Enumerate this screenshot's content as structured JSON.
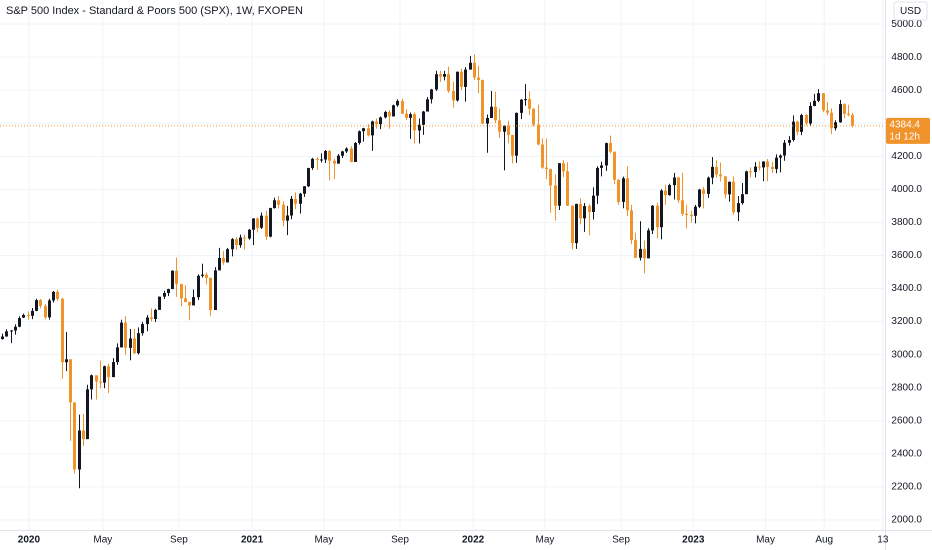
{
  "chart_data": {
    "type": "candlestick",
    "title": "S&P 500 Index - Standard & Poors 500 (SPX), 1W, FXOPEN",
    "currency": "USD",
    "countdown": "1d 12h",
    "last_price": 4384.4,
    "up_color": "#131722",
    "down_color": "#f0932b",
    "grid": true,
    "xlim": [
      -0.5,
      207.7
    ],
    "ylim": [
      1939,
      5146
    ],
    "xticks": [
      {
        "value": 6.3,
        "label": "2020"
      },
      {
        "value": 23.7,
        "label": "May"
      },
      {
        "value": 41.6,
        "label": "Sep"
      },
      {
        "value": 58.8,
        "label": "2021"
      },
      {
        "value": 75.7,
        "label": "May"
      },
      {
        "value": 93.6,
        "label": "Sep"
      },
      {
        "value": 110.8,
        "label": "2022"
      },
      {
        "value": 127.7,
        "label": "May"
      },
      {
        "value": 145.6,
        "label": "Sep"
      },
      {
        "value": 162.6,
        "label": "2023"
      },
      {
        "value": 179.6,
        "label": "May"
      },
      {
        "value": 193.4,
        "label": "Aug"
      },
      {
        "value": 207.2,
        "label": "13"
      }
    ],
    "yticks": [
      {
        "value": 2000,
        "label": "2000.0"
      },
      {
        "value": 2200,
        "label": "2200.0"
      },
      {
        "value": 2400,
        "label": "2400.0"
      },
      {
        "value": 2600,
        "label": "2600.0"
      },
      {
        "value": 2800,
        "label": "2800.0"
      },
      {
        "value": 3000,
        "label": "3000.0"
      },
      {
        "value": 3200,
        "label": "3200.0"
      },
      {
        "value": 3400,
        "label": "3400.0"
      },
      {
        "value": 3600,
        "label": "3600.0"
      },
      {
        "value": 3800,
        "label": "3800.0"
      },
      {
        "value": 4000,
        "label": "4000.0"
      },
      {
        "value": 4200,
        "label": "4200.0"
      },
      {
        "value": 4400,
        "label": "4400.0"
      },
      {
        "value": 4600,
        "label": "4600.0"
      },
      {
        "value": 4800,
        "label": "4800.0"
      },
      {
        "value": 5000,
        "label": "5000.0"
      }
    ],
    "ohlc": [
      [
        3094,
        3127,
        3091,
        3110
      ],
      [
        3110,
        3154,
        3108,
        3141
      ],
      [
        3143,
        3150,
        3070,
        3146
      ],
      [
        3146,
        3183,
        3121,
        3169
      ],
      [
        3169,
        3232,
        3166,
        3221
      ],
      [
        3224,
        3248,
        3221,
        3240
      ],
      [
        3240,
        3260,
        3212,
        3235
      ],
      [
        3235,
        3282,
        3215,
        3265
      ],
      [
        3265,
        3338,
        3263,
        3330
      ],
      [
        3330,
        3337,
        3280,
        3295
      ],
      [
        3295,
        3306,
        3214,
        3226
      ],
      [
        3226,
        3338,
        3212,
        3328
      ],
      [
        3328,
        3385,
        3315,
        3380
      ],
      [
        3380,
        3393,
        3327,
        3338
      ],
      [
        3338,
        3345,
        2855,
        2954
      ],
      [
        2954,
        3137,
        2900,
        2972
      ],
      [
        2972,
        2972,
        2478,
        2711
      ],
      [
        2711,
        2711,
        2281,
        2305
      ],
      [
        2305,
        2637,
        2192,
        2541
      ],
      [
        2541,
        2641,
        2447,
        2489
      ],
      [
        2489,
        2818,
        2489,
        2790
      ],
      [
        2790,
        2880,
        2729,
        2875
      ],
      [
        2875,
        2875,
        2728,
        2837
      ],
      [
        2837,
        2965,
        2797,
        2831
      ],
      [
        2831,
        2934,
        2797,
        2930
      ],
      [
        2930,
        2945,
        2767,
        2864
      ],
      [
        2864,
        2980,
        2864,
        2955
      ],
      [
        2955,
        3068,
        2938,
        3044
      ],
      [
        3044,
        3211,
        3044,
        3194
      ],
      [
        3194,
        3233,
        2999,
        3041
      ],
      [
        3041,
        3155,
        2966,
        3098
      ],
      [
        3098,
        3155,
        3004,
        3009
      ],
      [
        3009,
        3165,
        3001,
        3130
      ],
      [
        3130,
        3198,
        3115,
        3185
      ],
      [
        3185,
        3239,
        3142,
        3225
      ],
      [
        3225,
        3280,
        3200,
        3216
      ],
      [
        3216,
        3278,
        3197,
        3271
      ],
      [
        3271,
        3352,
        3271,
        3351
      ],
      [
        3351,
        3387,
        3337,
        3373
      ],
      [
        3373,
        3399,
        3354,
        3397
      ],
      [
        3397,
        3510,
        3397,
        3508
      ],
      [
        3508,
        3588,
        3350,
        3427
      ],
      [
        3427,
        3430,
        3293,
        3341
      ],
      [
        3341,
        3420,
        3316,
        3319
      ],
      [
        3319,
        3320,
        3209,
        3298
      ],
      [
        3298,
        3394,
        3298,
        3348
      ],
      [
        3348,
        3486,
        3330,
        3477
      ],
      [
        3477,
        3550,
        3466,
        3484
      ],
      [
        3484,
        3497,
        3425,
        3465
      ],
      [
        3465,
        3465,
        3233,
        3270
      ],
      [
        3270,
        3530,
        3270,
        3510
      ],
      [
        3510,
        3646,
        3510,
        3585
      ],
      [
        3585,
        3628,
        3543,
        3558
      ],
      [
        3558,
        3645,
        3558,
        3638
      ],
      [
        3638,
        3705,
        3595,
        3699
      ],
      [
        3699,
        3713,
        3633,
        3663
      ],
      [
        3663,
        3726,
        3647,
        3709
      ],
      [
        3709,
        3726,
        3636,
        3703
      ],
      [
        3703,
        3760,
        3695,
        3756
      ],
      [
        3756,
        3826,
        3663,
        3824
      ],
      [
        3824,
        3830,
        3740,
        3768
      ],
      [
        3768,
        3860,
        3760,
        3841
      ],
      [
        3841,
        3870,
        3694,
        3714
      ],
      [
        3714,
        3889,
        3710,
        3887
      ],
      [
        3887,
        3950,
        3884,
        3934
      ],
      [
        3934,
        3960,
        3885,
        3907
      ],
      [
        3907,
        3928,
        3776,
        3811
      ],
      [
        3811,
        3900,
        3723,
        3842
      ],
      [
        3842,
        3960,
        3819,
        3943
      ],
      [
        3943,
        3983,
        3880,
        3913
      ],
      [
        3913,
        3979,
        3853,
        3974
      ],
      [
        3974,
        4020,
        3955,
        4019
      ],
      [
        4019,
        4131,
        4014,
        4129
      ],
      [
        4129,
        4191,
        4118,
        4185
      ],
      [
        4185,
        4195,
        4118,
        4180
      ],
      [
        4180,
        4218,
        4163,
        4181
      ],
      [
        4181,
        4238,
        4160,
        4232
      ],
      [
        4232,
        4238,
        4056,
        4173
      ],
      [
        4173,
        4185,
        4062,
        4156
      ],
      [
        4156,
        4214,
        4156,
        4204
      ],
      [
        4204,
        4234,
        4190,
        4230
      ],
      [
        4230,
        4255,
        4220,
        4247
      ],
      [
        4247,
        4262,
        4164,
        4166
      ],
      [
        4166,
        4286,
        4166,
        4281
      ],
      [
        4281,
        4356,
        4271,
        4352
      ],
      [
        4352,
        4372,
        4289,
        4370
      ],
      [
        4370,
        4394,
        4321,
        4327
      ],
      [
        4327,
        4416,
        4233,
        4411
      ],
      [
        4411,
        4429,
        4368,
        4395
      ],
      [
        4395,
        4440,
        4365,
        4436
      ],
      [
        4436,
        4475,
        4430,
        4468
      ],
      [
        4468,
        4480,
        4367,
        4442
      ],
      [
        4442,
        4513,
        4440,
        4509
      ],
      [
        4509,
        4545,
        4500,
        4535
      ],
      [
        4535,
        4549,
        4456,
        4458
      ],
      [
        4458,
        4486,
        4420,
        4433
      ],
      [
        4433,
        4465,
        4306,
        4455
      ],
      [
        4455,
        4466,
        4278,
        4357
      ],
      [
        4357,
        4429,
        4278,
        4391
      ],
      [
        4391,
        4475,
        4330,
        4471
      ],
      [
        4471,
        4560,
        4471,
        4545
      ],
      [
        4545,
        4608,
        4520,
        4605
      ],
      [
        4605,
        4718,
        4595,
        4697
      ],
      [
        4697,
        4718,
        4650,
        4682
      ],
      [
        4682,
        4717,
        4660,
        4698
      ],
      [
        4698,
        4743,
        4585,
        4595
      ],
      [
        4595,
        4652,
        4495,
        4538
      ],
      [
        4538,
        4713,
        4532,
        4712
      ],
      [
        4712,
        4731,
        4600,
        4620
      ],
      [
        4620,
        4740,
        4531,
        4725
      ],
      [
        4725,
        4808,
        4725,
        4766
      ],
      [
        4766,
        4818,
        4662,
        4677
      ],
      [
        4677,
        4749,
        4582,
        4662
      ],
      [
        4662,
        4665,
        4395,
        4398
      ],
      [
        4398,
        4453,
        4222,
        4432
      ],
      [
        4432,
        4595,
        4432,
        4500
      ],
      [
        4500,
        4590,
        4401,
        4418
      ],
      [
        4418,
        4489,
        4312,
        4349
      ],
      [
        4349,
        4390,
        4115,
        4385
      ],
      [
        4385,
        4416,
        4279,
        4329
      ],
      [
        4329,
        4331,
        4157,
        4204
      ],
      [
        4204,
        4465,
        4161,
        4463
      ],
      [
        4463,
        4546,
        4425,
        4543
      ],
      [
        4543,
        4637,
        4506,
        4546
      ],
      [
        4546,
        4593,
        4450,
        4488
      ],
      [
        4488,
        4492,
        4381,
        4392
      ],
      [
        4392,
        4513,
        4267,
        4272
      ],
      [
        4272,
        4308,
        4124,
        4132
      ],
      [
        4132,
        4308,
        4062,
        4123
      ],
      [
        4123,
        4124,
        3859,
        4024
      ],
      [
        4024,
        4090,
        3811,
        3901
      ],
      [
        3901,
        4160,
        3875,
        4158
      ],
      [
        4158,
        4177,
        4074,
        4109
      ],
      [
        4109,
        4165,
        3900,
        3901
      ],
      [
        3901,
        3903,
        3637,
        3675
      ],
      [
        3675,
        3913,
        3640,
        3912
      ],
      [
        3912,
        3946,
        3788,
        3825
      ],
      [
        3825,
        3918,
        3743,
        3899
      ],
      [
        3899,
        3911,
        3722,
        3863
      ],
      [
        3863,
        4012,
        3818,
        3962
      ],
      [
        3962,
        4140,
        3912,
        4130
      ],
      [
        4130,
        4167,
        4079,
        4145
      ],
      [
        4145,
        4283,
        4112,
        4280
      ],
      [
        4280,
        4325,
        4218,
        4228
      ],
      [
        4228,
        4228,
        4031,
        4058
      ],
      [
        4058,
        4062,
        3906,
        3924
      ],
      [
        3924,
        4077,
        3886,
        4067
      ],
      [
        4067,
        4140,
        3838,
        3873
      ],
      [
        3873,
        3906,
        3669,
        3693
      ],
      [
        3693,
        3737,
        3584,
        3586
      ],
      [
        3586,
        3807,
        3570,
        3640
      ],
      [
        3640,
        3690,
        3492,
        3583
      ],
      [
        3583,
        3765,
        3583,
        3752
      ],
      [
        3752,
        3905,
        3730,
        3901
      ],
      [
        3901,
        3920,
        3704,
        3771
      ],
      [
        3771,
        4001,
        3698,
        3993
      ],
      [
        3993,
        4028,
        3906,
        3965
      ],
      [
        3965,
        4034,
        3962,
        4026
      ],
      [
        4026,
        4100,
        3939,
        4072
      ],
      [
        4072,
        4076,
        3918,
        3934
      ],
      [
        3934,
        4101,
        3838,
        3852
      ],
      [
        3852,
        3906,
        3764,
        3845
      ],
      [
        3845,
        3872,
        3800,
        3840
      ],
      [
        3840,
        3906,
        3794,
        3895
      ],
      [
        3895,
        4003,
        3887,
        3999
      ],
      [
        3999,
        4015,
        3885,
        3973
      ],
      [
        3973,
        4077,
        3949,
        4071
      ],
      [
        4071,
        4195,
        4031,
        4136
      ],
      [
        4136,
        4176,
        4070,
        4090
      ],
      [
        4090,
        4163,
        4048,
        4079
      ],
      [
        4079,
        4080,
        3944,
        3970
      ],
      [
        3970,
        4048,
        3925,
        4046
      ],
      [
        4046,
        4079,
        3847,
        3862
      ],
      [
        3862,
        3960,
        3808,
        3917
      ],
      [
        3917,
        4039,
        3908,
        3971
      ],
      [
        3971,
        4113,
        3971,
        4109
      ],
      [
        4109,
        4133,
        4073,
        4105
      ],
      [
        4105,
        4164,
        4072,
        4138
      ],
      [
        4138,
        4170,
        4114,
        4133
      ],
      [
        4133,
        4170,
        4049,
        4169
      ],
      [
        4169,
        4185,
        4049,
        4136
      ],
      [
        4136,
        4166,
        4099,
        4124
      ],
      [
        4124,
        4212,
        4098,
        4192
      ],
      [
        4192,
        4212,
        4103,
        4205
      ],
      [
        4205,
        4299,
        4173,
        4282
      ],
      [
        4282,
        4322,
        4265,
        4299
      ],
      [
        4299,
        4448,
        4290,
        4410
      ],
      [
        4410,
        4415,
        4328,
        4348
      ],
      [
        4348,
        4458,
        4328,
        4450
      ],
      [
        4450,
        4456,
        4386,
        4399
      ],
      [
        4399,
        4528,
        4385,
        4505
      ],
      [
        4505,
        4578,
        4503,
        4536
      ],
      [
        4536,
        4607,
        4528,
        4582
      ],
      [
        4582,
        4584,
        4467,
        4478
      ],
      [
        4478,
        4528,
        4448,
        4464
      ],
      [
        4464,
        4490,
        4335,
        4370
      ],
      [
        4370,
        4418,
        4356,
        4406
      ],
      [
        4406,
        4542,
        4403,
        4516
      ],
      [
        4516,
        4521,
        4430,
        4457
      ],
      [
        4457,
        4512,
        4442,
        4450
      ],
      [
        4450,
        4463,
        4375,
        4384.4
      ]
    ]
  }
}
